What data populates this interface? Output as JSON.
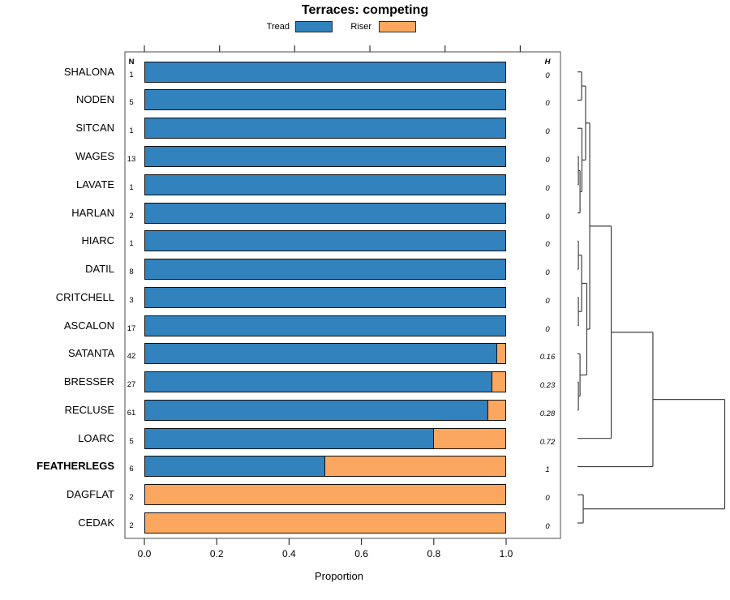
{
  "chart_data": {
    "type": "bar",
    "orientation": "horizontal-stacked",
    "title": "Terraces: competing",
    "xlabel": "Proportion",
    "xlim": [
      0,
      1
    ],
    "xticks": [
      "0.0",
      "0.2",
      "0.4",
      "0.6",
      "0.8",
      "1.0"
    ],
    "grid": false,
    "legend_position": "top",
    "n_label": "N",
    "h_label": "H",
    "categories": [
      "SHALONA",
      "NODEN",
      "SITCAN",
      "WAGES",
      "LAVATE",
      "HARLAN",
      "HIARC",
      "DATIL",
      "CRITCHELL",
      "ASCALON",
      "SATANTA",
      "BRESSER",
      "RECLUSE",
      "LOARC",
      "FEATHERLEGS",
      "DAGFLAT",
      "CEDAK"
    ],
    "bold_category": "FEATHERLEGS",
    "series": [
      {
        "name": "Tread",
        "color": "#3182bd",
        "values": [
          1,
          1,
          1,
          1,
          1,
          1,
          1,
          1,
          1,
          1,
          0.976,
          0.963,
          0.951,
          0.8,
          0.5,
          0,
          0
        ]
      },
      {
        "name": "Riser",
        "color": "#fba75f",
        "values": [
          0,
          0,
          0,
          0,
          0,
          0,
          0,
          0,
          0,
          0,
          0.024,
          0.037,
          0.049,
          0.2,
          0.5,
          1,
          1
        ]
      }
    ],
    "N": [
      1,
      5,
      1,
      13,
      1,
      2,
      1,
      8,
      3,
      17,
      42,
      27,
      61,
      5,
      6,
      2,
      2
    ],
    "H": [
      "0",
      "0",
      "0",
      "0",
      "0",
      "0",
      "0",
      "0",
      "0",
      "0",
      "0.16",
      "0.23",
      "0.28",
      "0.72",
      "1",
      "0",
      "0"
    ],
    "dendrogram": {
      "h": 1.0,
      "c": [
        {
          "h": 0.512,
          "c": [
            {
              "h": 0.229,
              "c": [
                {
                  "h": 0.083,
                  "c": [
                    {
                      "h": 0.055,
                      "c": [
                        {
                          "h": 0.028,
                          "c": [
                            "SHALONA",
                            "NODEN"
                          ]
                        },
                        {
                          "h": 0.03,
                          "c": [
                            "SITCAN",
                            {
                              "h": 0.017,
                              "c": [
                                {
                                  "h": 0.006,
                                  "c": [
                                    "WAGES",
                                    "LAVATE"
                                  ]
                                },
                                "HARLAN"
                              ]
                            }
                          ]
                        }
                      ]
                    },
                    {
                      "h": 0.063,
                      "c": [
                        {
                          "h": 0.028,
                          "c": [
                            {
                              "h": 0.006,
                              "c": [
                                "HIARC",
                                "DATIL"
                              ]
                            },
                            {
                              "h": 0.006,
                              "c": [
                                "CRITCHELL",
                                "ASCALON"
                              ]
                            }
                          ]
                        },
                        {
                          "h": 0.017,
                          "c": [
                            "SATANTA",
                            {
                              "h": 0.006,
                              "c": [
                                "BRESSER",
                                "RECLUSE"
                              ]
                            }
                          ]
                        }
                      ]
                    }
                  ]
                },
                "LOARC"
              ]
            },
            "FEATHERLEGS"
          ]
        },
        {
          "h": 0.039,
          "c": [
            "DAGFLAT",
            "CEDAK"
          ]
        }
      ]
    }
  }
}
